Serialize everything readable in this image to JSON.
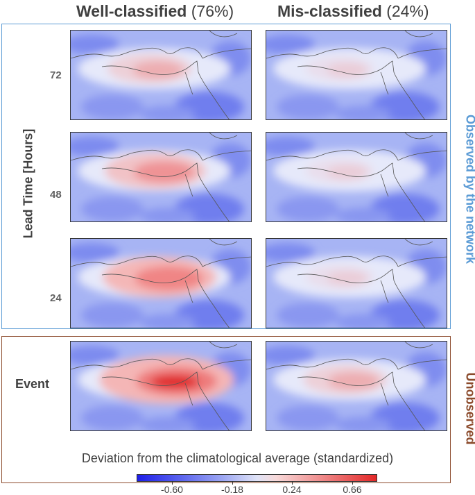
{
  "columns": [
    {
      "title": "Well-classified",
      "pct": "(76%)"
    },
    {
      "title": "Mis-classified",
      "pct": "(24%)"
    }
  ],
  "rows": {
    "lead_72": "72",
    "lead_48": "48",
    "lead_24": "24",
    "event": "Event"
  },
  "side_labels": {
    "lead_time": "Lead Time [Hours]",
    "observed": "Observed by the network",
    "unobserved": "Unobserved"
  },
  "colorbar": {
    "title": "Deviation from the climatological average (standardized)",
    "ticks": [
      "-0.60",
      "-0.18",
      "0.24",
      "0.66"
    ],
    "range": [
      -0.81,
      0.87
    ],
    "low_color": "#1f1fe8",
    "mid_color": "#ffffff",
    "high_color": "#e32727"
  },
  "panels": {
    "well_72": {
      "intensity": 0.35
    },
    "mis_72": {
      "intensity": 0.15
    },
    "well_48": {
      "intensity": 0.55
    },
    "mis_48": {
      "intensity": 0.15
    },
    "well_24": {
      "intensity": 0.7
    },
    "mis_24": {
      "intensity": 0.15
    },
    "well_event": {
      "intensity": 0.95
    },
    "mis_event": {
      "intensity": 0.35
    }
  }
}
